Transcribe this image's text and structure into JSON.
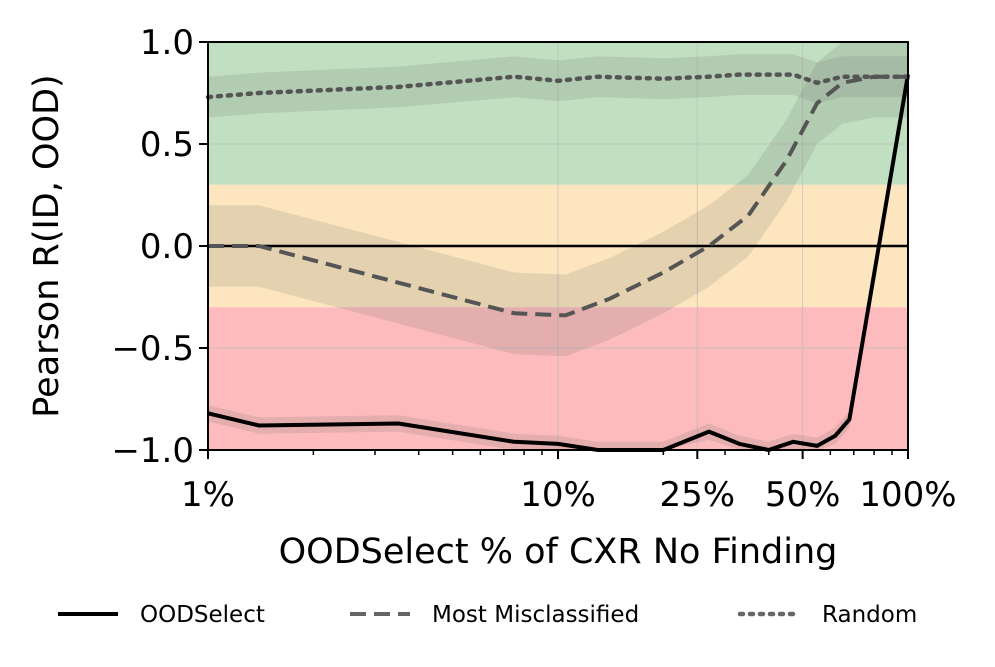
{
  "chart_data": {
    "type": "line",
    "xlabel": "OODSelect % of CXR No Finding",
    "ylabel": "Pearson R(ID, OOD)",
    "xscale": "log",
    "xlim": [
      1,
      100
    ],
    "ylim": [
      -1.0,
      1.0
    ],
    "grid": true,
    "legend_placement": "bottom",
    "x_ticks": [
      {
        "value": 1,
        "label": "1%"
      },
      {
        "value": 10,
        "label": "10%"
      },
      {
        "value": 25,
        "label": "25%"
      },
      {
        "value": 50,
        "label": "50%"
      },
      {
        "value": 100,
        "label": "100%"
      }
    ],
    "y_ticks": [
      {
        "value": 1.0,
        "label": "1.0"
      },
      {
        "value": 0.5,
        "label": "0.5"
      },
      {
        "value": 0.0,
        "label": "0.0"
      },
      {
        "value": -0.5,
        "label": "−0.5"
      },
      {
        "value": -1.0,
        "label": "−1.0"
      }
    ],
    "bands": [
      {
        "from": 0.3,
        "to": 1.0,
        "color": "#c1e0c1"
      },
      {
        "from": -0.3,
        "to": 0.3,
        "color": "#fde6bf"
      },
      {
        "from": -1.0,
        "to": -0.3,
        "color": "#fdbbbd"
      }
    ],
    "series": [
      {
        "name": "OODSelect",
        "style": "solid",
        "color": "#000000",
        "x": [
          1,
          1.4,
          3.5,
          7.5,
          10,
          13,
          20,
          27,
          33,
          40,
          47,
          55,
          62,
          68,
          100
        ],
        "y": [
          -0.82,
          -0.88,
          -0.87,
          -0.96,
          -0.97,
          -1.0,
          -1.0,
          -0.91,
          -0.97,
          -1.0,
          -0.96,
          -0.98,
          -0.93,
          -0.85,
          0.84
        ],
        "band": 0.04
      },
      {
        "name": "Most Misclassified",
        "style": "dashed",
        "color": "#555555",
        "x": [
          1,
          1.4,
          3.5,
          7.5,
          10.5,
          14,
          20,
          27,
          35,
          45,
          55,
          65,
          80,
          100
        ],
        "y": [
          0.0,
          0.0,
          -0.18,
          -0.33,
          -0.34,
          -0.26,
          -0.13,
          0.0,
          0.15,
          0.42,
          0.7,
          0.8,
          0.83,
          0.83
        ],
        "band": 0.2
      },
      {
        "name": "Random",
        "style": "dotted",
        "color": "#555555",
        "x": [
          1,
          1.4,
          3.5,
          7.5,
          10,
          13,
          20,
          27,
          33,
          40,
          47,
          55,
          65,
          80,
          100
        ],
        "y": [
          0.73,
          0.75,
          0.78,
          0.83,
          0.81,
          0.83,
          0.82,
          0.83,
          0.84,
          0.84,
          0.84,
          0.8,
          0.83,
          0.83,
          0.83
        ],
        "band": 0.1
      }
    ]
  }
}
